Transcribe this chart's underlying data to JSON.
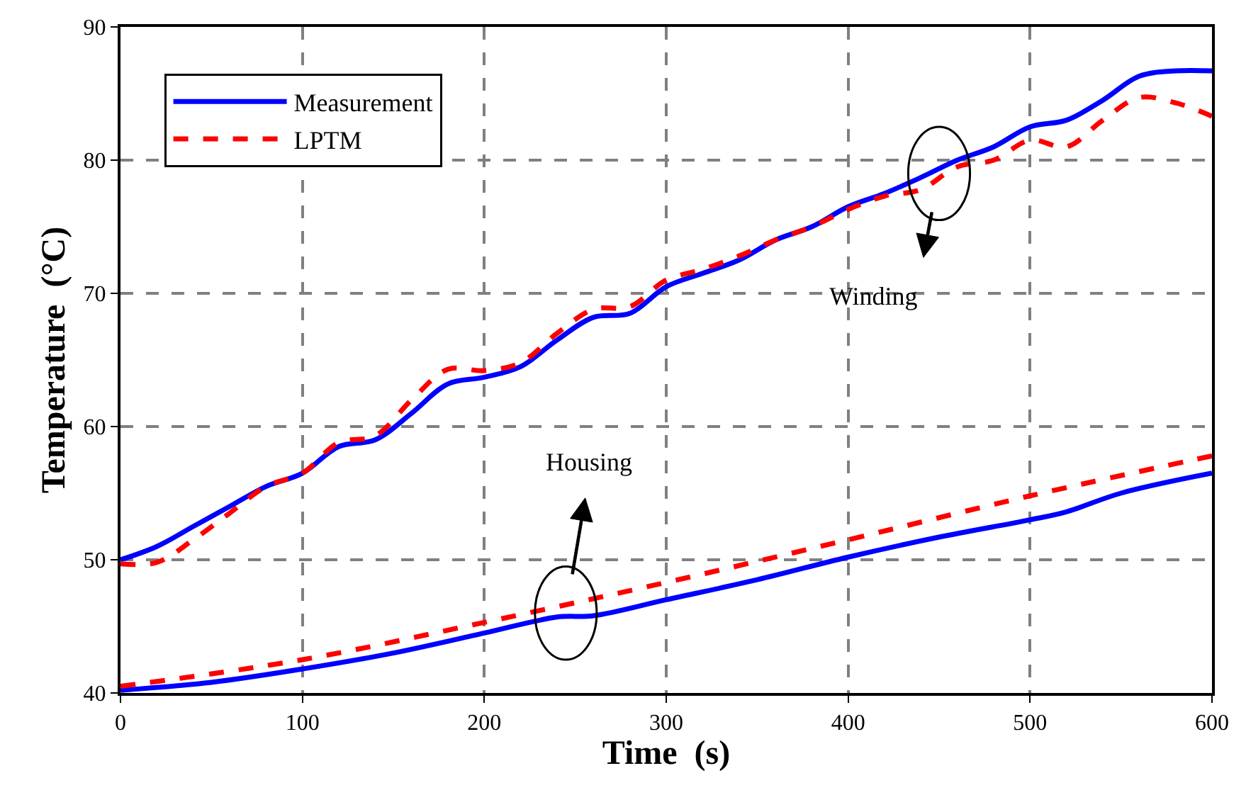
{
  "chart_data": {
    "type": "line",
    "xlabel": "Time  (s)",
    "ylabel": "Temperature  (°C)",
    "xlim": [
      0,
      600
    ],
    "xticks": [
      0,
      100,
      200,
      300,
      400,
      500,
      600
    ],
    "ylim": [
      40,
      90
    ],
    "yticks": [
      40,
      50,
      60,
      70,
      80,
      90
    ],
    "grid": true,
    "legend": "top left",
    "annotations": [
      "Housing",
      "Winding"
    ],
    "series": [
      {
        "name": "Measurement",
        "color": "#0000ff",
        "line_style": "solid",
        "x": [
          0,
          20,
          40,
          60,
          80,
          100,
          120,
          140,
          160,
          180,
          200,
          220,
          240,
          260,
          280,
          300,
          320,
          340,
          360,
          380,
          400,
          420,
          440,
          460,
          480,
          500,
          520,
          540,
          560,
          580,
          600
        ],
        "values": [
          50,
          51,
          52.5,
          54,
          55.5,
          56.5,
          58.5,
          59,
          61,
          63.2,
          63.7,
          64.5,
          66.5,
          68.2,
          68.5,
          70.5,
          71.5,
          72.5,
          74,
          75,
          76.5,
          77.5,
          78.7,
          80,
          81,
          82.5,
          83,
          84.5,
          86.3,
          86.7,
          86.7
        ]
      },
      {
        "name": "LPTM",
        "color": "#ff0000",
        "line_style": "dashed",
        "x": [
          0,
          20,
          40,
          60,
          80,
          100,
          120,
          140,
          160,
          180,
          200,
          220,
          240,
          260,
          280,
          300,
          320,
          340,
          360,
          380,
          400,
          420,
          440,
          460,
          480,
          500,
          520,
          540,
          560,
          580,
          600
        ],
        "values": [
          49.7,
          49.8,
          51.5,
          53.5,
          55.5,
          56.5,
          58.8,
          59.3,
          62,
          64.3,
          64.2,
          64.8,
          67,
          68.8,
          69,
          71,
          71.8,
          72.8,
          74,
          75,
          76.3,
          77.3,
          77.8,
          79.5,
          80,
          81.5,
          81,
          83,
          84.7,
          84.3,
          83.3
        ]
      },
      {
        "color": "#0000ff",
        "line_style": "solid",
        "x": [
          0,
          50,
          100,
          150,
          200,
          240,
          260,
          300,
          350,
          400,
          450,
          500,
          520,
          550,
          600
        ],
        "values": [
          40.2,
          40.8,
          41.8,
          43,
          44.5,
          45.7,
          45.8,
          47,
          48.5,
          50.2,
          51.7,
          53,
          53.6,
          55,
          56.5
        ]
      },
      {
        "color": "#ff0000",
        "line_style": "dashed",
        "x": [
          0,
          100,
          200,
          300,
          400,
          500,
          600
        ],
        "values": [
          40.5,
          42.5,
          45.3,
          48.3,
          51.5,
          54.8,
          57.8
        ]
      }
    ]
  }
}
